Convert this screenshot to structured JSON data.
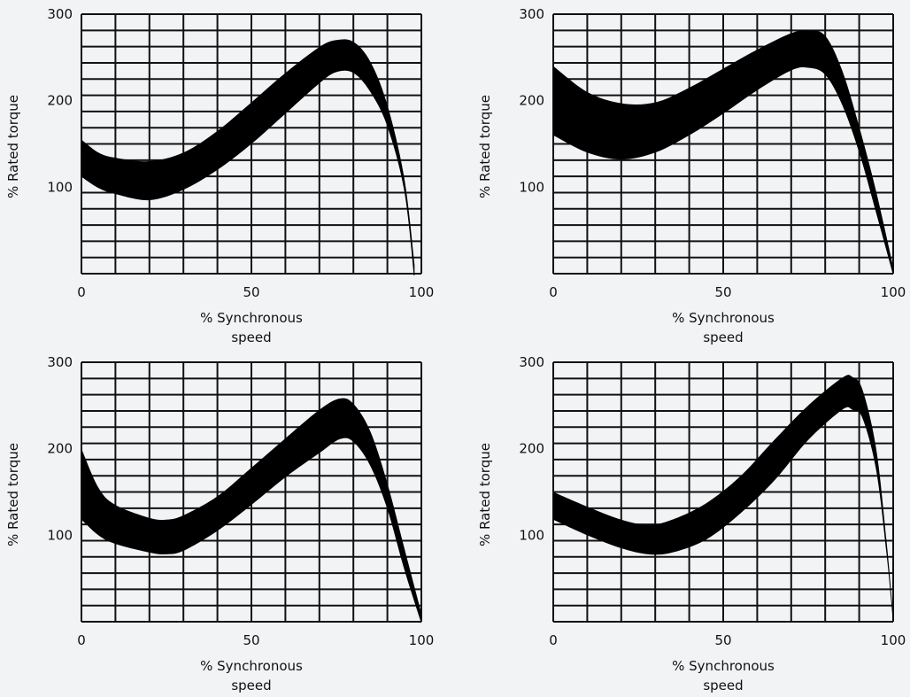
{
  "chart_data": [
    {
      "type": "area",
      "ylabel": "% Rated torque",
      "xlabel_line1": "% Synchronous",
      "xlabel_line2": "speed",
      "xlim": [
        0,
        100
      ],
      "ylim": [
        0,
        300
      ],
      "xticks": [
        "0",
        "50",
        "100"
      ],
      "yticks": [
        "100",
        "200",
        "300"
      ],
      "grid": true,
      "series": [
        {
          "band": true,
          "values": [
            {
              "x": 0,
              "lower": 112,
              "upper": 155
            },
            {
              "x": 5,
              "lower": 99,
              "upper": 140
            },
            {
              "x": 10,
              "lower": 92,
              "upper": 134
            },
            {
              "x": 20,
              "lower": 85,
              "upper": 130
            },
            {
              "x": 30,
              "lower": 97,
              "upper": 140
            },
            {
              "x": 40,
              "lower": 120,
              "upper": 165
            },
            {
              "x": 50,
              "lower": 150,
              "upper": 198
            },
            {
              "x": 60,
              "lower": 185,
              "upper": 232
            },
            {
              "x": 70,
              "lower": 220,
              "upper": 262
            },
            {
              "x": 75,
              "lower": 233,
              "upper": 270
            },
            {
              "x": 80,
              "lower": 232,
              "upper": 268
            },
            {
              "x": 85,
              "lower": 210,
              "upper": 245
            },
            {
              "x": 90,
              "lower": 170,
              "upper": 195
            },
            {
              "x": 95,
              "lower": 95,
              "upper": 110
            },
            {
              "x": 98,
              "lower": -10,
              "upper": 10
            }
          ]
        }
      ]
    },
    {
      "type": "area",
      "ylabel": "% Rated torque",
      "xlabel_line1": "% Synchronous",
      "xlabel_line2": "speed",
      "xlim": [
        0,
        100
      ],
      "ylim": [
        0,
        300
      ],
      "xticks": [
        "0",
        "50",
        "100"
      ],
      "yticks": [
        "100",
        "200",
        "300"
      ],
      "grid": true,
      "series": [
        {
          "band": true,
          "values": [
            {
              "x": 0,
              "lower": 160,
              "upper": 240
            },
            {
              "x": 10,
              "lower": 140,
              "upper": 210
            },
            {
              "x": 20,
              "lower": 132,
              "upper": 197
            },
            {
              "x": 30,
              "lower": 140,
              "upper": 198
            },
            {
              "x": 40,
              "lower": 160,
              "upper": 215
            },
            {
              "x": 50,
              "lower": 185,
              "upper": 237
            },
            {
              "x": 60,
              "lower": 212,
              "upper": 259
            },
            {
              "x": 70,
              "lower": 235,
              "upper": 278
            },
            {
              "x": 75,
              "lower": 238,
              "upper": 281
            },
            {
              "x": 80,
              "lower": 230,
              "upper": 275
            },
            {
              "x": 85,
              "lower": 195,
              "upper": 235
            },
            {
              "x": 90,
              "lower": 140,
              "upper": 170
            },
            {
              "x": 95,
              "lower": 70,
              "upper": 95
            },
            {
              "x": 100,
              "lower": -2,
              "upper": 8
            }
          ]
        }
      ]
    },
    {
      "type": "area",
      "ylabel": "% Rated torque",
      "xlabel_line1": "% Synchronous",
      "xlabel_line2": "speed",
      "xlim": [
        0,
        100
      ],
      "ylim": [
        0,
        300
      ],
      "xticks": [
        "0",
        "50",
        "100"
      ],
      "yticks": [
        "100",
        "200",
        "300"
      ],
      "grid": true,
      "series": [
        {
          "band": true,
          "values": [
            {
              "x": 0,
              "lower": 118,
              "upper": 200
            },
            {
              "x": 5,
              "lower": 100,
              "upper": 155
            },
            {
              "x": 10,
              "lower": 90,
              "upper": 135
            },
            {
              "x": 20,
              "lower": 80,
              "upper": 120
            },
            {
              "x": 25,
              "lower": 78,
              "upper": 118
            },
            {
              "x": 30,
              "lower": 82,
              "upper": 123
            },
            {
              "x": 40,
              "lower": 105,
              "upper": 145
            },
            {
              "x": 50,
              "lower": 135,
              "upper": 178
            },
            {
              "x": 60,
              "lower": 167,
              "upper": 212
            },
            {
              "x": 70,
              "lower": 195,
              "upper": 245
            },
            {
              "x": 76,
              "lower": 211,
              "upper": 258
            },
            {
              "x": 80,
              "lower": 208,
              "upper": 252
            },
            {
              "x": 85,
              "lower": 180,
              "upper": 220
            },
            {
              "x": 90,
              "lower": 130,
              "upper": 160
            },
            {
              "x": 95,
              "lower": 60,
              "upper": 85
            },
            {
              "x": 100,
              "lower": -2,
              "upper": 10
            }
          ]
        }
      ]
    },
    {
      "type": "area",
      "ylabel": "% Rated torque",
      "xlabel_line1": "% Synchronous",
      "xlabel_line2": "speed",
      "xlim": [
        0,
        100
      ],
      "ylim": [
        0,
        300
      ],
      "xticks": [
        "0",
        "50",
        "100"
      ],
      "yticks": [
        "100",
        "200",
        "300"
      ],
      "grid": true,
      "series": [
        {
          "band": true,
          "values": [
            {
              "x": 0,
              "lower": 118,
              "upper": 150
            },
            {
              "x": 10,
              "lower": 100,
              "upper": 133
            },
            {
              "x": 20,
              "lower": 85,
              "upper": 118
            },
            {
              "x": 28,
              "lower": 78,
              "upper": 112
            },
            {
              "x": 35,
              "lower": 80,
              "upper": 118
            },
            {
              "x": 45,
              "lower": 95,
              "upper": 137
            },
            {
              "x": 55,
              "lower": 125,
              "upper": 168
            },
            {
              "x": 65,
              "lower": 163,
              "upper": 210
            },
            {
              "x": 75,
              "lower": 210,
              "upper": 250
            },
            {
              "x": 85,
              "lower": 245,
              "upper": 282
            },
            {
              "x": 88,
              "lower": 245,
              "upper": 283
            },
            {
              "x": 91,
              "lower": 235,
              "upper": 268
            },
            {
              "x": 95,
              "lower": 175,
              "upper": 200
            },
            {
              "x": 98,
              "lower": 80,
              "upper": 95
            },
            {
              "x": 100,
              "lower": -2,
              "upper": 8
            }
          ]
        }
      ]
    }
  ]
}
